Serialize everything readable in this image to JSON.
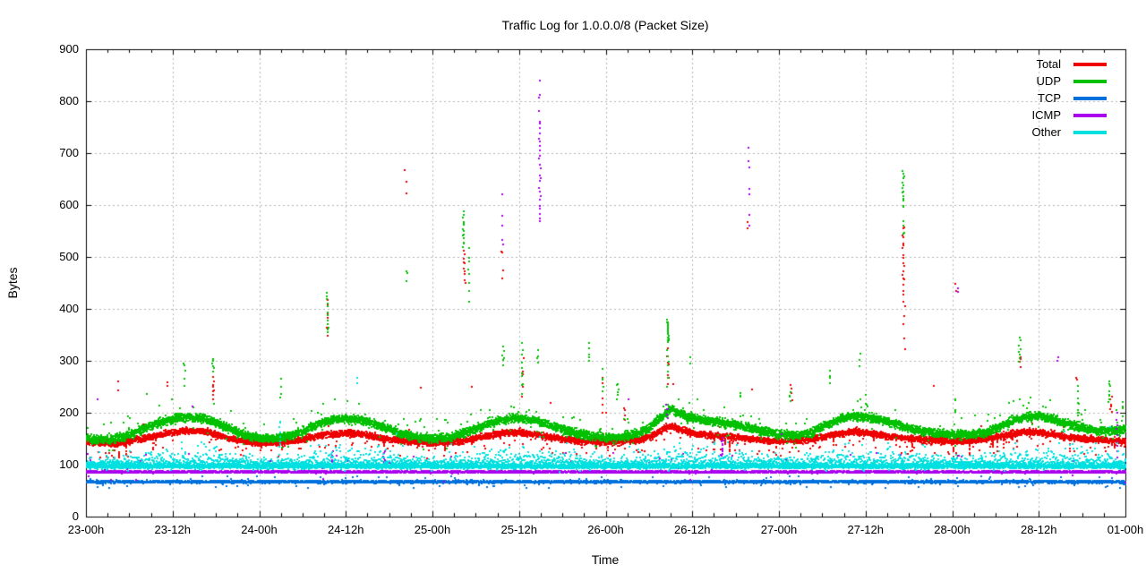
{
  "colors": {
    "background": "#ffffff",
    "border": "#000000",
    "grid": "#b4b4b4",
    "text": "#000000"
  },
  "chart_data": {
    "type": "scatter",
    "title": "Traffic Log for 1.0.0.0/8 (Packet Size)",
    "xlabel": "Time",
    "ylabel": "Bytes",
    "ylim": [
      0,
      900
    ],
    "y_tick_step": 100,
    "y_tick_labels": [
      "0",
      "100",
      "200",
      "300",
      "400",
      "500",
      "600",
      "700",
      "800",
      "900"
    ],
    "x_range_hours": [
      0,
      144
    ],
    "x_minor_tick_hours": 3,
    "grid": "dashed-gray",
    "legend_position": "top-right-inside",
    "x_ticks": [
      {
        "hour": 0,
        "label": "23-00h"
      },
      {
        "hour": 12,
        "label": "23-12h"
      },
      {
        "hour": 24,
        "label": "24-00h"
      },
      {
        "hour": 36,
        "label": "24-12h"
      },
      {
        "hour": 48,
        "label": "25-00h"
      },
      {
        "hour": 60,
        "label": "25-12h"
      },
      {
        "hour": 72,
        "label": "26-00h"
      },
      {
        "hour": 84,
        "label": "26-12h"
      },
      {
        "hour": 96,
        "label": "27-00h"
      },
      {
        "hour": 108,
        "label": "27-12h"
      },
      {
        "hour": 120,
        "label": "28-00h"
      },
      {
        "hour": 132,
        "label": "28-12h"
      },
      {
        "hour": 144,
        "label": "01-00h"
      }
    ],
    "series": [
      {
        "id": "total",
        "name": "Total",
        "color": "#ee0000",
        "band": {
          "density": 6,
          "spread": 6
        },
        "tails": {
          "up_p": 0.03,
          "up_min": 8,
          "up_max": 28,
          "down_p": 0.12,
          "down_min": 8,
          "down_max": 30,
          "spike_p": 0.022,
          "rare_p": 0.004,
          "rare_min": 40,
          "rare_max": 110
        },
        "anchors": [
          [
            0,
            143
          ],
          [
            4,
            141
          ],
          [
            6,
            145
          ],
          [
            8,
            151
          ],
          [
            10,
            157
          ],
          [
            12,
            162
          ],
          [
            14,
            166
          ],
          [
            16,
            164
          ],
          [
            18,
            158
          ],
          [
            20,
            150
          ],
          [
            22,
            145
          ],
          [
            24,
            141
          ],
          [
            28,
            144
          ],
          [
            30,
            149
          ],
          [
            32,
            155
          ],
          [
            34,
            159
          ],
          [
            36,
            161
          ],
          [
            38,
            159
          ],
          [
            40,
            154
          ],
          [
            42,
            149
          ],
          [
            44,
            145
          ],
          [
            48,
            141
          ],
          [
            52,
            146
          ],
          [
            54,
            151
          ],
          [
            56,
            157
          ],
          [
            58,
            161
          ],
          [
            60,
            162
          ],
          [
            62,
            158
          ],
          [
            64,
            153
          ],
          [
            66,
            149
          ],
          [
            68,
            146
          ],
          [
            72,
            143
          ],
          [
            76,
            147
          ],
          [
            78,
            153
          ],
          [
            80,
            168
          ],
          [
            81,
            176
          ],
          [
            82,
            168
          ],
          [
            84,
            161
          ],
          [
            86,
            157
          ],
          [
            88,
            155
          ],
          [
            90,
            152
          ],
          [
            92,
            149
          ],
          [
            94,
            147
          ],
          [
            96,
            145
          ],
          [
            100,
            148
          ],
          [
            102,
            153
          ],
          [
            104,
            159
          ],
          [
            106,
            163
          ],
          [
            108,
            161
          ],
          [
            110,
            157
          ],
          [
            112,
            153
          ],
          [
            114,
            150
          ],
          [
            118,
            146
          ],
          [
            120,
            145
          ],
          [
            124,
            148
          ],
          [
            126,
            153
          ],
          [
            128,
            159
          ],
          [
            130,
            163
          ],
          [
            132,
            162
          ],
          [
            134,
            158
          ],
          [
            136,
            153
          ],
          [
            138,
            150
          ],
          [
            142,
            146
          ],
          [
            144,
            144
          ]
        ],
        "outliers": [
          [
            4.3,
            245,
            256,
            2
          ],
          [
            11.2,
            252,
            262,
            2
          ],
          [
            17.5,
            228,
            266,
            8
          ],
          [
            33.4,
            352,
            420,
            6
          ],
          [
            44.2,
            628,
            660,
            3
          ],
          [
            52.3,
            450,
            512,
            10
          ],
          [
            57.6,
            458,
            520,
            4
          ],
          [
            60.4,
            228,
            300,
            6
          ],
          [
            71.4,
            203,
            280,
            6
          ],
          [
            74.6,
            188,
            210,
            4
          ],
          [
            80.5,
            253,
            320,
            8
          ],
          [
            91.5,
            560,
            572,
            2
          ],
          [
            97.6,
            228,
            252,
            4
          ],
          [
            113.1,
            430,
            560,
            18
          ],
          [
            113.3,
            330,
            420,
            6
          ],
          [
            120.3,
            435,
            446,
            2
          ],
          [
            129.4,
            288,
            310,
            4
          ],
          [
            137.2,
            262,
            268,
            2
          ],
          [
            141.9,
            198,
            232,
            6
          ]
        ]
      },
      {
        "id": "udp",
        "name": "UDP",
        "color": "#00c000",
        "band": {
          "density": 7,
          "spread": 8
        },
        "tails": {
          "up_p": 0.1,
          "up_min": 10,
          "up_max": 40,
          "down_p": 0.06,
          "down_min": 10,
          "down_max": 26,
          "rare_p": 0.006,
          "rare_min": 40,
          "rare_max": 100
        },
        "anchors": [
          [
            0,
            150
          ],
          [
            2,
            148
          ],
          [
            4,
            150
          ],
          [
            6,
            158
          ],
          [
            8,
            170
          ],
          [
            10,
            181
          ],
          [
            12,
            188
          ],
          [
            14,
            192
          ],
          [
            16,
            190
          ],
          [
            18,
            181
          ],
          [
            20,
            168
          ],
          [
            22,
            156
          ],
          [
            24,
            150
          ],
          [
            26,
            150
          ],
          [
            28,
            155
          ],
          [
            30,
            165
          ],
          [
            32,
            178
          ],
          [
            34,
            186
          ],
          [
            36,
            188
          ],
          [
            38,
            186
          ],
          [
            40,
            178
          ],
          [
            42,
            168
          ],
          [
            44,
            158
          ],
          [
            46,
            152
          ],
          [
            48,
            150
          ],
          [
            50,
            152
          ],
          [
            52,
            159
          ],
          [
            54,
            170
          ],
          [
            56,
            182
          ],
          [
            58,
            188
          ],
          [
            60,
            190
          ],
          [
            62,
            185
          ],
          [
            64,
            176
          ],
          [
            66,
            168
          ],
          [
            68,
            160
          ],
          [
            70,
            155
          ],
          [
            72,
            152
          ],
          [
            74,
            153
          ],
          [
            76,
            159
          ],
          [
            78,
            172
          ],
          [
            80,
            196
          ],
          [
            81,
            207
          ],
          [
            82,
            199
          ],
          [
            84,
            190
          ],
          [
            86,
            184
          ],
          [
            88,
            181
          ],
          [
            90,
            176
          ],
          [
            92,
            170
          ],
          [
            94,
            164
          ],
          [
            96,
            158
          ],
          [
            98,
            156
          ],
          [
            100,
            161
          ],
          [
            102,
            173
          ],
          [
            104,
            186
          ],
          [
            106,
            193
          ],
          [
            108,
            192
          ],
          [
            110,
            186
          ],
          [
            112,
            178
          ],
          [
            114,
            170
          ],
          [
            116,
            164
          ],
          [
            118,
            160
          ],
          [
            120,
            158
          ],
          [
            122,
            157
          ],
          [
            124,
            160
          ],
          [
            126,
            170
          ],
          [
            128,
            184
          ],
          [
            130,
            192
          ],
          [
            132,
            193
          ],
          [
            134,
            188
          ],
          [
            136,
            178
          ],
          [
            138,
            170
          ],
          [
            140,
            166
          ],
          [
            142,
            164
          ],
          [
            144,
            167
          ]
        ],
        "outliers": [
          [
            13.5,
            250,
            300,
            5
          ],
          [
            17.5,
            280,
            306,
            6
          ],
          [
            26.9,
            230,
            262,
            4
          ],
          [
            33.4,
            352,
            432,
            12
          ],
          [
            44.3,
            458,
            475,
            3
          ],
          [
            52.2,
            520,
            585,
            14
          ],
          [
            52.9,
            420,
            520,
            8
          ],
          [
            57.7,
            295,
            325,
            6
          ],
          [
            60.3,
            238,
            330,
            10
          ],
          [
            62.5,
            298,
            320,
            4
          ],
          [
            69.6,
            298,
            336,
            5
          ],
          [
            71.4,
            238,
            280,
            5
          ],
          [
            73.6,
            228,
            256,
            6
          ],
          [
            80.5,
            338,
            378,
            16
          ],
          [
            80.5,
            255,
            335,
            8
          ],
          [
            83.6,
            298,
            306,
            2
          ],
          [
            90.5,
            228,
            240,
            3
          ],
          [
            97.5,
            222,
            242,
            4
          ],
          [
            103,
            258,
            282,
            4
          ],
          [
            107.2,
            292,
            310,
            3
          ],
          [
            113.1,
            595,
            665,
            14
          ],
          [
            113.1,
            540,
            572,
            4
          ],
          [
            120.3,
            198,
            230,
            4
          ],
          [
            129.3,
            298,
            345,
            8
          ],
          [
            137.3,
            185,
            250,
            8
          ],
          [
            141.6,
            218,
            262,
            8
          ],
          [
            143.5,
            188,
            225,
            5
          ]
        ]
      },
      {
        "id": "tcp",
        "name": "TCP",
        "color": "#0070dd",
        "band": {
          "density": 5,
          "spread": 2.4
        },
        "tails": {
          "up_p": 0.03,
          "up_min": 3,
          "up_max": 11,
          "down_p": 0.05,
          "down_min": 3,
          "down_max": 12,
          "rare_p": 0.002,
          "rare_min": 10,
          "rare_max": 16
        },
        "anchors": [
          [
            0,
            67
          ],
          [
            144,
            67
          ]
        ],
        "outliers": []
      },
      {
        "id": "icmp",
        "name": "ICMP",
        "color": "#aa00ee",
        "band": {
          "density": 5,
          "spread": 1.9
        },
        "tails": {
          "up_p": 0.045,
          "up_min": 4,
          "up_max": 38,
          "down_p": 0.012,
          "down_min": 4,
          "down_max": 22,
          "rare_p": 0.0035,
          "rare_min": 40,
          "rare_max": 170
        },
        "anchors": [
          [
            0,
            86
          ],
          [
            144,
            86
          ]
        ],
        "outliers": [
          [
            34,
            104,
            127,
            6
          ],
          [
            41.2,
            104,
            127,
            6
          ],
          [
            57.6,
            518,
            615,
            5
          ],
          [
            62.75,
            568,
            762,
            24
          ],
          [
            62.75,
            778,
            845,
            4
          ],
          [
            80.4,
            192,
            216,
            5
          ],
          [
            88,
            118,
            152,
            10
          ],
          [
            91.8,
            558,
            712,
            7
          ],
          [
            120.5,
            436,
            444,
            2
          ],
          [
            134.5,
            298,
            306,
            2
          ],
          [
            142.8,
            80,
            200,
            12
          ]
        ]
      },
      {
        "id": "other",
        "name": "Other",
        "color": "#00e0e0",
        "band": {
          "density": 6,
          "spread": 4.2
        },
        "tails": {
          "up_p": 0.02,
          "up_min": 10,
          "up_max": 40,
          "down_p": 0.03,
          "down_min": 4,
          "down_max": 10,
          "rare_p": 0.004,
          "rare_min": 35,
          "rare_max": 80
        },
        "day_tail": {
          "scale_min": 4,
          "scale_max": 14,
          "count": 2,
          "cap": 45
        },
        "anchors": [
          [
            0,
            97
          ],
          [
            144,
            97
          ]
        ],
        "outliers": [
          [
            26.8,
            133,
            186,
            8
          ],
          [
            37.4,
            254,
            266,
            2
          ],
          [
            87,
            128,
            145,
            3
          ],
          [
            116,
            130,
            140,
            2
          ]
        ]
      }
    ]
  }
}
